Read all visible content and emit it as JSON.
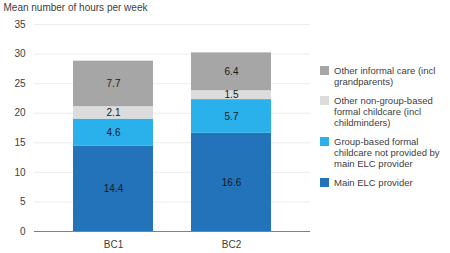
{
  "chart_data": {
    "type": "bar",
    "stacked": true,
    "data_labels": true,
    "grid": true,
    "legend": "right",
    "y_label": "Mean number of hours per week",
    "categories": [
      "BC1",
      "BC2"
    ],
    "series": [
      {
        "name": "Main ELC provider",
        "color": "#2273b9",
        "values": [
          14.4,
          16.6
        ]
      },
      {
        "name": "Group-based formal childcare not provided by main ELC provider",
        "color": "#2ab0ea",
        "values": [
          4.6,
          5.7
        ]
      },
      {
        "name": "Other non-group-based formal childcare (incl childminders)",
        "color": "#dcdcdc",
        "values": [
          2.1,
          1.5
        ]
      },
      {
        "name": "Other informal care (incl grandparents)",
        "color": "#a6a6a6",
        "values": [
          7.7,
          6.4
        ]
      }
    ],
    "ylim": [
      0,
      35
    ],
    "yticks": [
      0,
      5,
      10,
      15,
      20,
      25,
      30,
      35
    ]
  }
}
